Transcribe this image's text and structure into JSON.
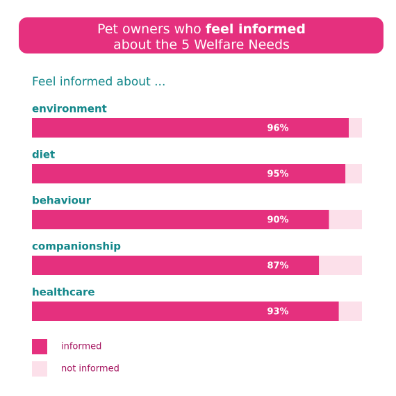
{
  "chart_data": {
    "type": "stacked-barh",
    "title_parts": [
      "Pet owners who",
      "feel informed",
      "about the 5 Welfare Needs"
    ],
    "subtitle": "Feel informed about ...",
    "categories": [
      "environment",
      "diet",
      "behaviour",
      "companionship",
      "healthcare"
    ],
    "series": [
      {
        "name": "informed",
        "color": "#e5307e",
        "values": [
          96,
          95,
          90,
          87,
          93
        ],
        "value_labels": [
          "96%",
          "95%",
          "90%",
          "87%",
          "93%"
        ]
      },
      {
        "name": "not informed",
        "color": "#fce0ea",
        "values": [
          4,
          5,
          10,
          13,
          7
        ]
      }
    ],
    "xlim": [
      0,
      100
    ]
  }
}
